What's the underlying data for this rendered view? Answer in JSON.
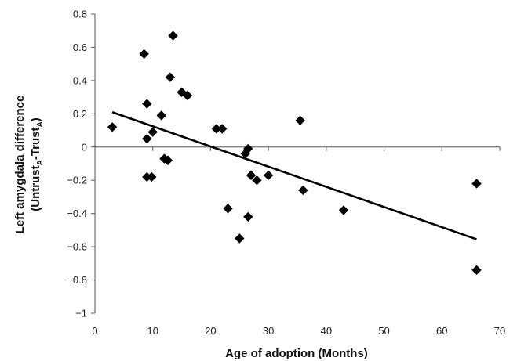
{
  "chart_data": {
    "type": "scatter",
    "xlabel": "Age of adoption (Months)",
    "ylabel_line1": "Left amygdala difference",
    "ylabel_line2": {
      "parts": [
        "(Untrust",
        "A",
        "-Trust",
        "A",
        ")"
      ]
    },
    "xlim": [
      0,
      70
    ],
    "ylim": [
      -1,
      0.8
    ],
    "x_ticks": [
      0,
      10,
      20,
      30,
      40,
      50,
      60,
      70
    ],
    "y_ticks": [
      0.8,
      0.6,
      0.4,
      0.2,
      0,
      -0.2,
      -0.4,
      -0.6,
      -0.8,
      -1
    ],
    "y_tick_labels": [
      "0.8",
      "0.6",
      "0.4",
      "0.2",
      "0",
      "−0.2",
      "−0.4",
      "−0.6",
      "−0.8",
      "−1"
    ],
    "grid": false,
    "marker": "diamond",
    "marker_color": "#000000",
    "points": [
      {
        "x": 3,
        "y": 0.12
      },
      {
        "x": 8.5,
        "y": 0.56
      },
      {
        "x": 9,
        "y": 0.26
      },
      {
        "x": 9,
        "y": 0.05
      },
      {
        "x": 9,
        "y": -0.18
      },
      {
        "x": 9.8,
        "y": -0.18
      },
      {
        "x": 10,
        "y": 0.09
      },
      {
        "x": 11.5,
        "y": 0.19
      },
      {
        "x": 12,
        "y": -0.07
      },
      {
        "x": 12.6,
        "y": -0.08
      },
      {
        "x": 13,
        "y": 0.42
      },
      {
        "x": 13.5,
        "y": 0.67
      },
      {
        "x": 15,
        "y": 0.33
      },
      {
        "x": 16,
        "y": 0.31
      },
      {
        "x": 21,
        "y": 0.11
      },
      {
        "x": 22,
        "y": 0.11
      },
      {
        "x": 23,
        "y": -0.37
      },
      {
        "x": 25,
        "y": -0.55
      },
      {
        "x": 26,
        "y": -0.04
      },
      {
        "x": 26.5,
        "y": -0.01
      },
      {
        "x": 26.5,
        "y": -0.42
      },
      {
        "x": 27,
        "y": -0.17
      },
      {
        "x": 28,
        "y": -0.2
      },
      {
        "x": 30,
        "y": -0.17
      },
      {
        "x": 35.5,
        "y": 0.16
      },
      {
        "x": 36,
        "y": -0.26
      },
      {
        "x": 43,
        "y": -0.38
      },
      {
        "x": 66,
        "y": -0.22
      },
      {
        "x": 66,
        "y": -0.74
      }
    ],
    "trendline": {
      "x": [
        3,
        66
      ],
      "y": [
        0.21,
        -0.555
      ]
    }
  }
}
